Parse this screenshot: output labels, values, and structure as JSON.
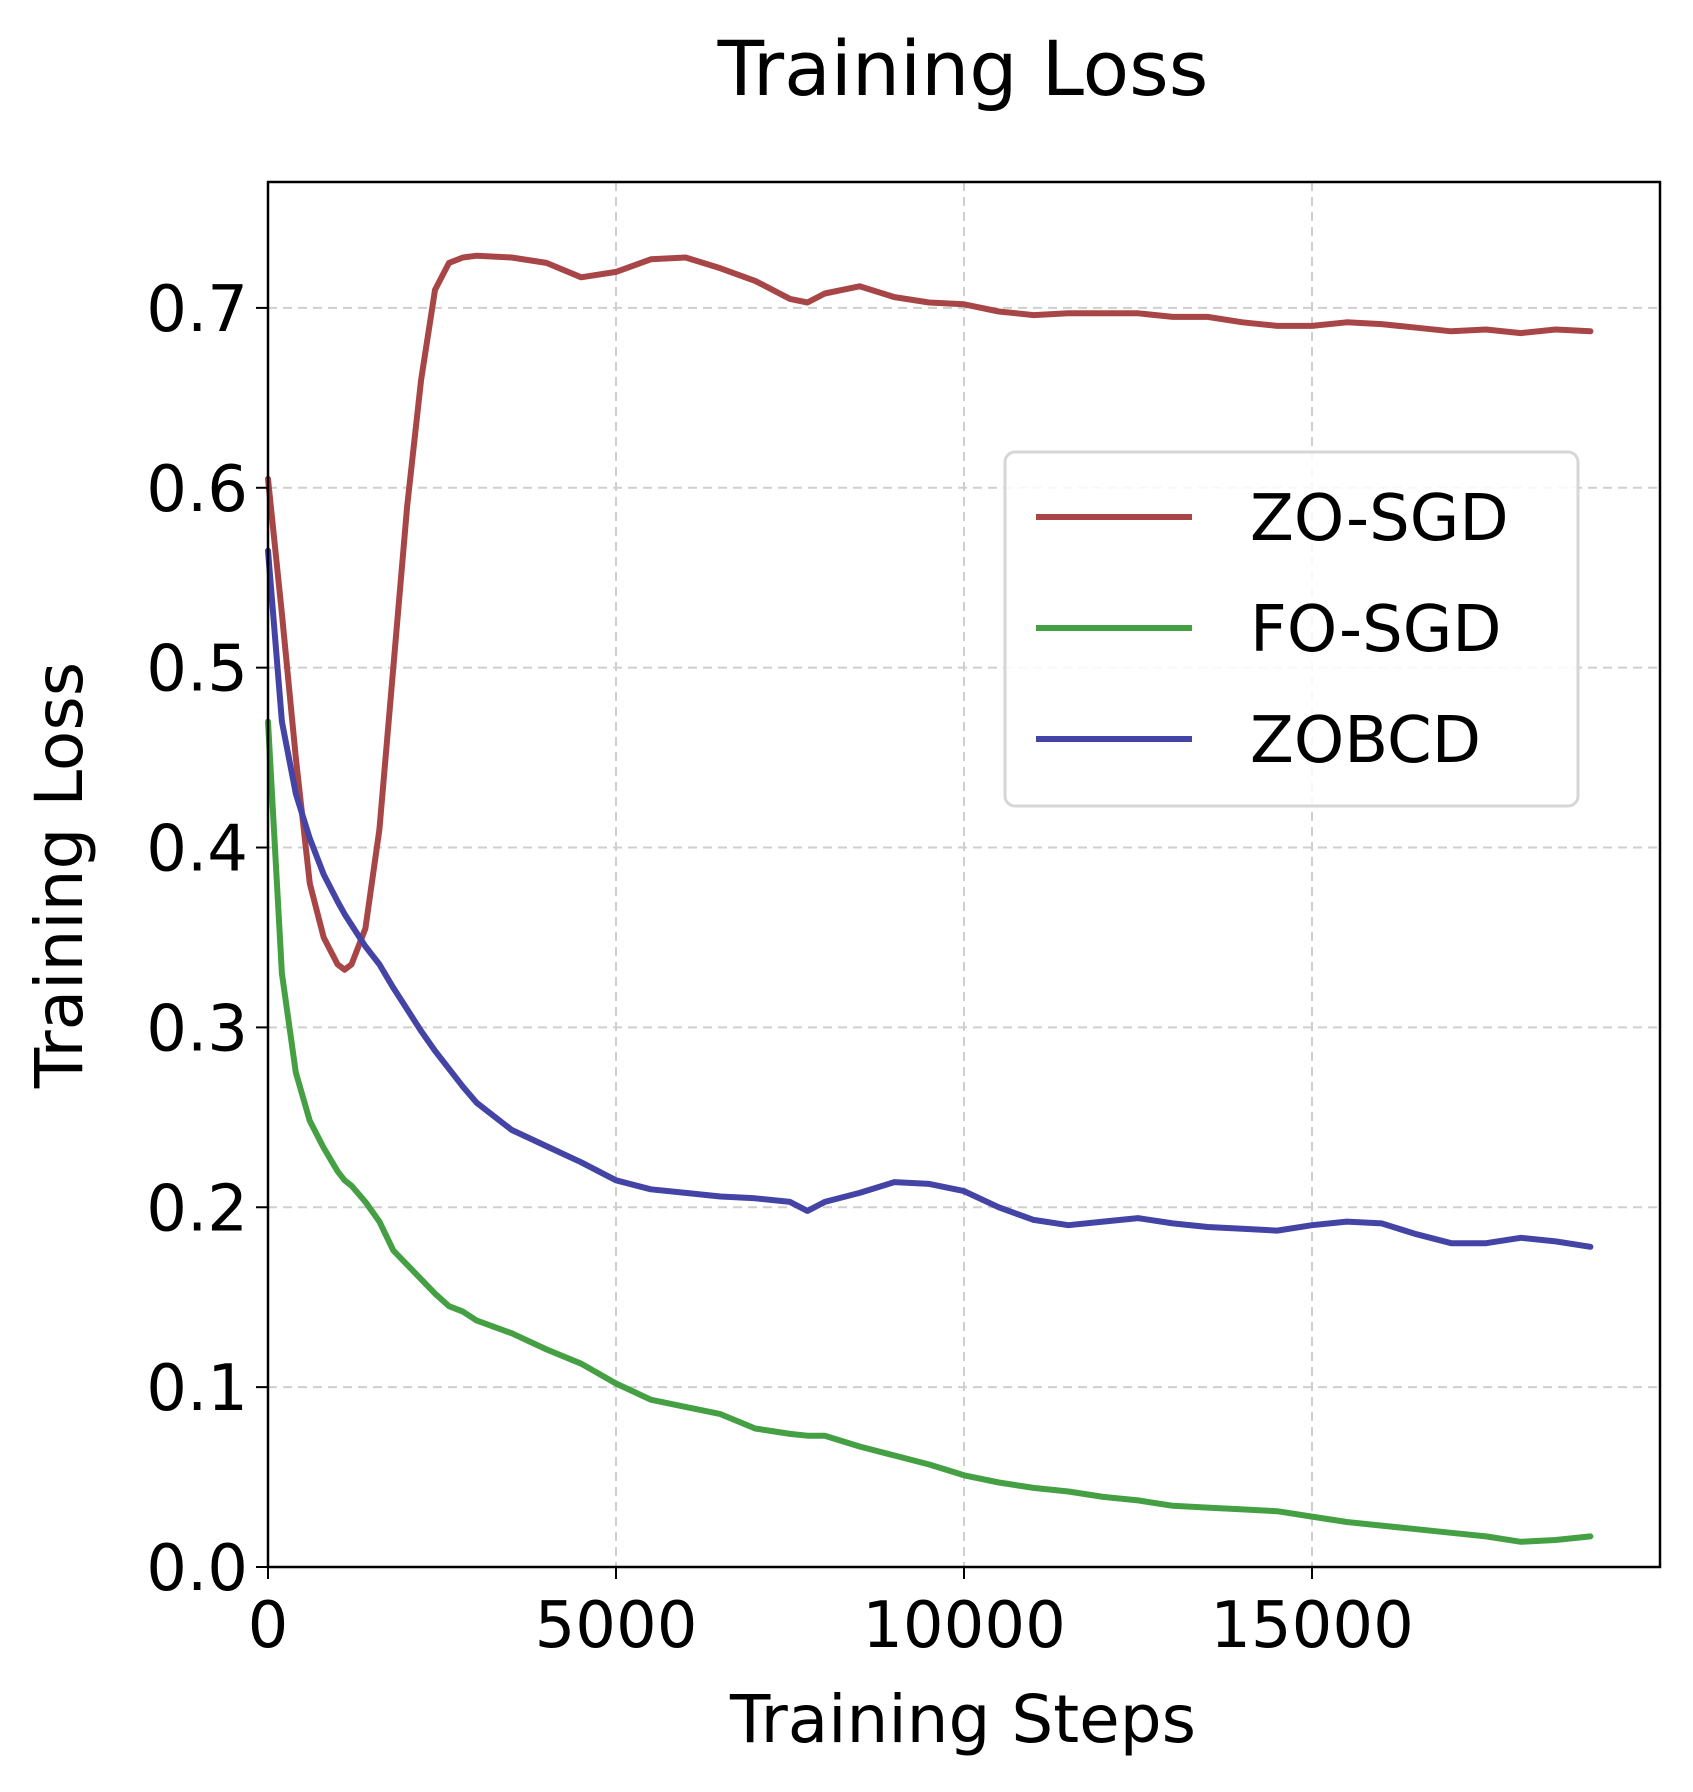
{
  "chart_data": {
    "type": "line",
    "title": "Training Loss",
    "xlabel": "Training Steps",
    "ylabel": "Training Loss",
    "xlim": [
      0,
      20000
    ],
    "ylim": [
      0,
      0.77
    ],
    "xticks": [
      0,
      5000,
      10000,
      15000
    ],
    "xtick_labels": [
      "0",
      "5000",
      "10000",
      "15000"
    ],
    "yticks": [
      0.0,
      0.1,
      0.2,
      0.3,
      0.4,
      0.5,
      0.6,
      0.7
    ],
    "ytick_labels": [
      "0.0",
      "0.1",
      "0.2",
      "0.3",
      "0.4",
      "0.5",
      "0.6",
      "0.7"
    ],
    "grid": true,
    "legend_position": "center-right",
    "x": [
      0,
      200,
      400,
      600,
      800,
      1000,
      1100,
      1200,
      1400,
      1600,
      1800,
      2000,
      2200,
      2400,
      2600,
      2800,
      3000,
      3500,
      4000,
      4500,
      5000,
      5500,
      6000,
      6500,
      7000,
      7500,
      7750,
      8000,
      8500,
      9000,
      9500,
      10000,
      10500,
      11000,
      11500,
      12000,
      12500,
      13000,
      13500,
      14000,
      14500,
      15000,
      15500,
      16000,
      16500,
      17000,
      17500,
      18000,
      18500,
      19000
    ],
    "series": [
      {
        "name": "ZO-SGD",
        "color": "#a84647",
        "values": [
          0.605,
          0.53,
          0.45,
          0.38,
          0.35,
          0.335,
          0.332,
          0.335,
          0.355,
          0.41,
          0.5,
          0.59,
          0.66,
          0.71,
          0.725,
          0.728,
          0.729,
          0.728,
          0.725,
          0.717,
          0.72,
          0.727,
          0.728,
          0.722,
          0.715,
          0.705,
          0.703,
          0.708,
          0.712,
          0.706,
          0.703,
          0.702,
          0.698,
          0.696,
          0.697,
          0.697,
          0.697,
          0.695,
          0.695,
          0.692,
          0.69,
          0.69,
          0.692,
          0.691,
          0.689,
          0.687,
          0.688,
          0.686,
          0.688,
          0.687
        ]
      },
      {
        "name": "FO-SGD",
        "color": "#45a044",
        "values": [
          0.47,
          0.33,
          0.275,
          0.248,
          0.233,
          0.22,
          0.215,
          0.212,
          0.203,
          0.192,
          0.176,
          0.168,
          0.16,
          0.152,
          0.145,
          0.142,
          0.137,
          0.13,
          0.121,
          0.113,
          0.102,
          0.093,
          0.089,
          0.085,
          0.077,
          0.074,
          0.073,
          0.073,
          0.067,
          0.062,
          0.057,
          0.051,
          0.047,
          0.044,
          0.042,
          0.039,
          0.037,
          0.034,
          0.033,
          0.032,
          0.031,
          0.028,
          0.025,
          0.023,
          0.021,
          0.019,
          0.017,
          0.014,
          0.015,
          0.017
        ]
      },
      {
        "name": "ZOBCD",
        "color": "#4444a6",
        "values": [
          0.565,
          0.47,
          0.43,
          0.405,
          0.385,
          0.37,
          0.363,
          0.357,
          0.345,
          0.335,
          0.322,
          0.31,
          0.298,
          0.287,
          0.277,
          0.267,
          0.258,
          0.243,
          0.234,
          0.225,
          0.215,
          0.21,
          0.208,
          0.206,
          0.205,
          0.203,
          0.198,
          0.203,
          0.208,
          0.214,
          0.213,
          0.209,
          0.2,
          0.193,
          0.19,
          0.192,
          0.194,
          0.191,
          0.189,
          0.188,
          0.187,
          0.19,
          0.192,
          0.191,
          0.185,
          0.18,
          0.18,
          0.183,
          0.181,
          0.178
        ]
      }
    ]
  }
}
